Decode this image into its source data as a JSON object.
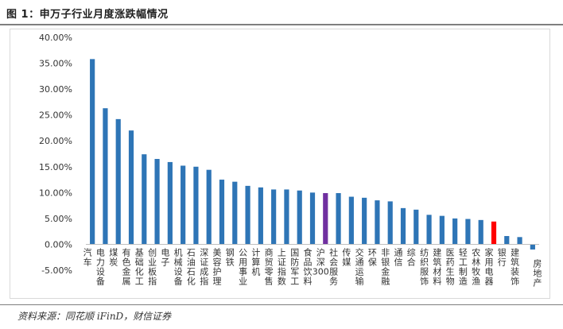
{
  "header": {
    "title": "图 1：申万子行业月度涨跌幅情况"
  },
  "footer": {
    "source": "资料来源：同花顺 iFinD，财信证券"
  },
  "chart_data": {
    "type": "bar",
    "title": "",
    "xlabel": "",
    "ylabel": "",
    "ylim": [
      -5,
      40
    ],
    "yticks": [
      -5,
      0,
      5,
      10,
      15,
      20,
      25,
      30,
      35,
      40
    ],
    "ytick_labels": [
      "-5.00%",
      "0.00%",
      "5.00%",
      "10.00%",
      "15.00%",
      "20.00%",
      "25.00%",
      "30.00%",
      "35.00%",
      "40.00%"
    ],
    "grid": false,
    "legend": "none",
    "colors": {
      "default": "#2e75b6",
      "highlight_purple": "#7030a0",
      "highlight_red": "#ff0000"
    },
    "categories": [
      "汽车",
      "电力设备",
      "煤炭",
      "有色金属",
      "基础化工",
      "创业板指",
      "电子",
      "机械设备",
      "石油石化",
      "深证成指",
      "美容护理",
      "钢铁",
      "公用事业",
      "计算机",
      "商贸零售",
      "上证指数",
      "国防军工",
      "食品饮料",
      "沪深300",
      "社会服务",
      "传媒",
      "交通运输",
      "环保",
      "非银金融",
      "通信",
      "综合",
      "纺织服饰",
      "建筑材料",
      "医药生物",
      "轻工制造",
      "农林牧渔",
      "家用电器",
      "银行",
      "建筑装饰",
      "房地产"
    ],
    "values": [
      35.8,
      26.3,
      24.2,
      22.0,
      17.4,
      16.5,
      15.9,
      15.2,
      15.0,
      14.4,
      12.5,
      12.1,
      11.3,
      11.0,
      10.6,
      10.6,
      10.4,
      10.0,
      9.9,
      9.9,
      9.2,
      9.0,
      8.5,
      8.3,
      7.0,
      6.7,
      5.7,
      5.5,
      5.0,
      4.9,
      4.7,
      4.4,
      1.6,
      1.4,
      -1.0
    ],
    "bar_colors": [
      "#2e75b6",
      "#2e75b6",
      "#2e75b6",
      "#2e75b6",
      "#2e75b6",
      "#2e75b6",
      "#2e75b6",
      "#2e75b6",
      "#2e75b6",
      "#2e75b6",
      "#2e75b6",
      "#2e75b6",
      "#2e75b6",
      "#2e75b6",
      "#2e75b6",
      "#2e75b6",
      "#2e75b6",
      "#2e75b6",
      "#7030a0",
      "#2e75b6",
      "#2e75b6",
      "#2e75b6",
      "#2e75b6",
      "#2e75b6",
      "#2e75b6",
      "#2e75b6",
      "#2e75b6",
      "#2e75b6",
      "#2e75b6",
      "#2e75b6",
      "#2e75b6",
      "#ff0000",
      "#2e75b6",
      "#2e75b6",
      "#2e75b6"
    ]
  }
}
